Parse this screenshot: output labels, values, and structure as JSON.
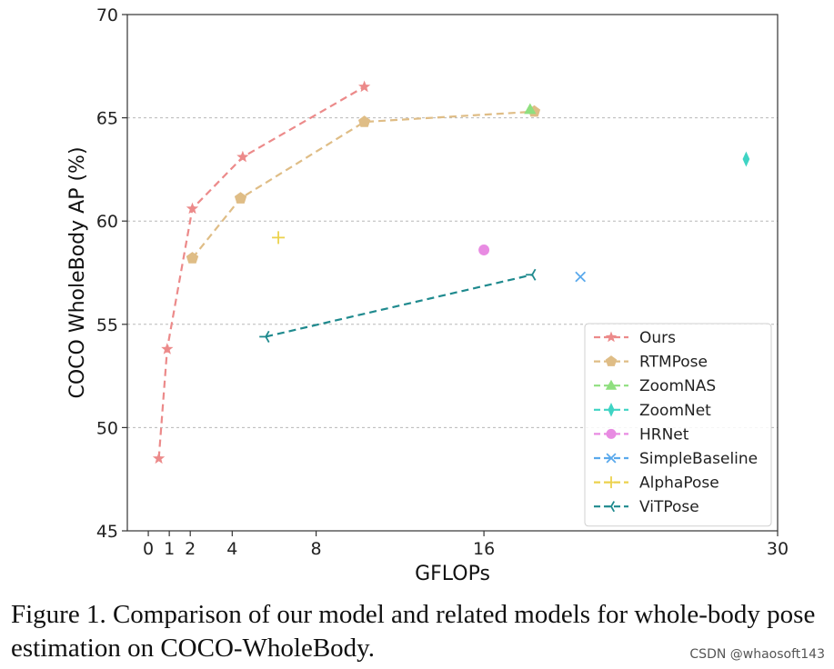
{
  "chart_data": {
    "type": "line",
    "xlabel": "GFLOPs",
    "ylabel": "COCO WholeBody AP (%)",
    "xlim": [
      -1,
      30
    ],
    "ylim": [
      45,
      70
    ],
    "xticks": [
      0,
      1,
      2,
      4,
      8,
      16,
      30
    ],
    "yticks": [
      45,
      50,
      55,
      60,
      65,
      70
    ],
    "grid": "horizontal-dashed",
    "legend_position": "lower-right",
    "series": [
      {
        "name": "Ours",
        "color": "#ec8a8a",
        "marker": "star",
        "linestyle": "dashed",
        "points": [
          [
            0.5,
            48.5
          ],
          [
            0.9,
            53.8
          ],
          [
            2.1,
            60.6
          ],
          [
            4.5,
            63.1
          ],
          [
            10.3,
            66.5
          ]
        ]
      },
      {
        "name": "RTMPose",
        "color": "#dfbd86",
        "marker": "pentagon",
        "linestyle": "dashed",
        "points": [
          [
            2.1,
            58.2
          ],
          [
            4.4,
            61.1
          ],
          [
            10.3,
            64.8
          ],
          [
            18.4,
            65.3
          ]
        ]
      },
      {
        "name": "ZoomNAS",
        "color": "#8fdf7f",
        "marker": "triangle",
        "linestyle": "dashed",
        "points": [
          [
            18.2,
            65.4
          ]
        ]
      },
      {
        "name": "ZoomNet",
        "color": "#3fd4c4",
        "marker": "thin-diamond",
        "linestyle": "dashed",
        "points": [
          [
            28.5,
            63.0
          ]
        ]
      },
      {
        "name": "HRNet",
        "color": "#e88be2",
        "marker": "circle",
        "linestyle": "dashed",
        "points": [
          [
            16.0,
            58.6
          ]
        ]
      },
      {
        "name": "SimpleBaseline",
        "color": "#5aa9ec",
        "marker": "x",
        "linestyle": "dashed",
        "points": [
          [
            20.6,
            57.3
          ]
        ]
      },
      {
        "name": "AlphaPose",
        "color": "#ecd24d",
        "marker": "plus",
        "linestyle": "dashed",
        "points": [
          [
            6.2,
            59.2
          ]
        ]
      },
      {
        "name": "ViTPose",
        "color": "#1f8a8e",
        "marker": "tri-left",
        "linestyle": "dashed",
        "points": [
          [
            5.6,
            54.4
          ],
          [
            18.3,
            57.4
          ]
        ]
      }
    ]
  },
  "caption": "Figure 1. Comparison of our model and related models for whole-body pose estimation on COCO-WholeBody.",
  "watermark": "CSDN @whaosoft143"
}
